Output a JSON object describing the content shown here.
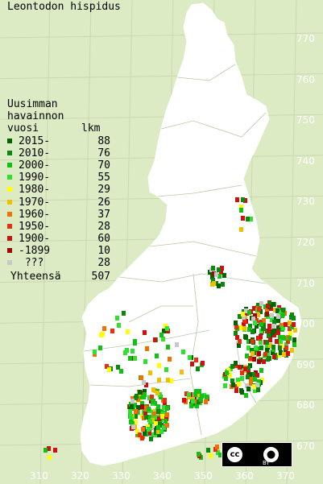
{
  "title": "Leontodon hispidus",
  "legend": {
    "header_line1": "Uusimman",
    "header_line2": "havainnon",
    "header_col1": "vuosi",
    "header_col2": "lkm",
    "items": [
      {
        "label": "2015-",
        "count": "88",
        "color": "#006400"
      },
      {
        "label": "2010-",
        "count": "76",
        "color": "#0a8a0a"
      },
      {
        "label": "2000-",
        "count": "70",
        "color": "#13c013"
      },
      {
        "label": "1990-",
        "count": "55",
        "color": "#2fe02f"
      },
      {
        "label": "1980-",
        "count": "29",
        "color": "#ffff00"
      },
      {
        "label": "1970-",
        "count": "26",
        "color": "#f0c000"
      },
      {
        "label": "1960-",
        "count": "37",
        "color": "#f07000"
      },
      {
        "label": "1950-",
        "count": "28",
        "color": "#e83010"
      },
      {
        "label": "1900-",
        "count": "60",
        "color": "#d01010"
      },
      {
        "label": "-1899",
        "count": "10",
        "color": "#a00808"
      },
      {
        "label": " ???",
        "count": "28",
        "color": "#c8c8c8"
      }
    ],
    "total_label": "Yhteensä",
    "total_count": "507"
  },
  "y_axis_labels": [
    "770",
    "760",
    "750",
    "740",
    "730",
    "720",
    "710",
    "700",
    "690",
    "680",
    "670"
  ],
  "x_axis_labels": [
    "310",
    "320",
    "330",
    "340",
    "350",
    "360",
    "370"
  ],
  "license": {
    "cc": "cc",
    "by": "BY"
  }
}
